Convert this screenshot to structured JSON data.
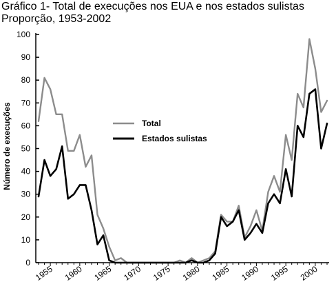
{
  "chart_data": {
    "type": "line",
    "title": "Gráfico 1- Total de execuções nos EUA e nos estados sulistas",
    "subtitle": "Proporção, 1953-2002",
    "xlabel": "",
    "ylabel": "Número de execuções",
    "xlim": [
      1953,
      2002
    ],
    "ylim": [
      0,
      100
    ],
    "y_ticks": [
      0,
      10,
      20,
      30,
      40,
      50,
      60,
      70,
      80,
      90,
      100
    ],
    "x_ticks": [
      1955,
      1960,
      1965,
      1970,
      1975,
      1980,
      1985,
      1990,
      1995,
      2000
    ],
    "x_tick_labels": [
      "1955",
      "1960",
      "1965",
      "1970",
      "1975",
      "1980",
      "1985",
      "1990",
      "1995",
      "2000"
    ],
    "grid": false,
    "legend_position": "center",
    "x": [
      1953,
      1954,
      1955,
      1956,
      1957,
      1958,
      1959,
      1960,
      1961,
      1962,
      1963,
      1964,
      1965,
      1966,
      1967,
      1968,
      1969,
      1970,
      1971,
      1972,
      1973,
      1974,
      1975,
      1976,
      1977,
      1978,
      1979,
      1980,
      1981,
      1982,
      1983,
      1984,
      1985,
      1986,
      1987,
      1988,
      1989,
      1990,
      1991,
      1992,
      1993,
      1994,
      1995,
      1996,
      1997,
      1998,
      1999,
      2000,
      2001,
      2002
    ],
    "series": [
      {
        "name": "Total",
        "color": "#8c8c8c",
        "values": [
          62,
          81,
          76,
          65,
          65,
          49,
          49,
          56,
          42,
          47,
          21,
          15,
          7,
          1,
          2,
          0,
          0,
          0,
          0,
          0,
          0,
          0,
          0,
          0,
          1,
          0,
          2,
          0,
          1,
          2,
          5,
          21,
          18,
          18,
          25,
          11,
          16,
          23,
          14,
          31,
          38,
          31,
          56,
          45,
          74,
          68,
          98,
          85,
          66,
          71
        ]
      },
      {
        "name": "Estados sulistas",
        "color": "#000000",
        "values": [
          29,
          45,
          38,
          41,
          51,
          28,
          30,
          34,
          34,
          23,
          8,
          12,
          1,
          0,
          0,
          0,
          0,
          0,
          0,
          0,
          0,
          0,
          0,
          0,
          0,
          0,
          1,
          0,
          0,
          1,
          4,
          20,
          16,
          18,
          23,
          10,
          13,
          17,
          13,
          26,
          30,
          26,
          41,
          29,
          60,
          55,
          74,
          76,
          50,
          61
        ]
      }
    ]
  }
}
